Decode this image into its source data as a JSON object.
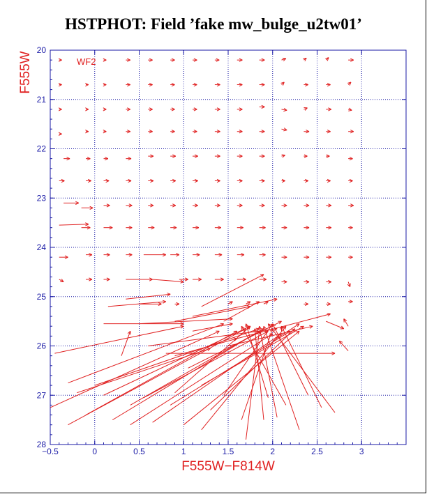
{
  "title": "HSTPHOT: Field ’fake mw_bulge_u2tw01’",
  "chart_data": {
    "type": "scatter",
    "subtype": "vector field (arrows from input to measured magnitude)",
    "xlabel": "F555W−F814W",
    "ylabel": "F555W",
    "panel_label": "WF2",
    "xlim": [
      -0.5,
      3.5
    ],
    "ylim": [
      20,
      28
    ],
    "y_inverted": true,
    "x_ticks": [
      "−0.5",
      "0",
      "0.5",
      "1",
      "1.5",
      "2",
      "2.5",
      "3"
    ],
    "x_tick_values": [
      -0.5,
      0,
      0.5,
      1,
      1.5,
      2,
      2.5,
      3
    ],
    "y_ticks": [
      "20",
      "21",
      "22",
      "23",
      "24",
      "25",
      "26",
      "27",
      "28"
    ],
    "y_tick_values": [
      20,
      21,
      22,
      23,
      24,
      25,
      26,
      27,
      28
    ],
    "grid": true,
    "grid_style": "dotted",
    "colors": {
      "arrows": "#e02020",
      "axes": "#1a1aa6",
      "axis_labels": "#e02020",
      "title": "#000000"
    },
    "grid_arrows": [
      {
        "x": -0.4,
        "y": 20.2,
        "dx": 0.03,
        "dy": 0.0
      },
      {
        "x": 0.1,
        "y": 20.2,
        "dx": 0.03,
        "dy": 0.0
      },
      {
        "x": 0.35,
        "y": 20.2,
        "dx": 0.05,
        "dy": 0.0
      },
      {
        "x": 0.6,
        "y": 20.2,
        "dx": 0.05,
        "dy": 0.0
      },
      {
        "x": 0.85,
        "y": 20.2,
        "dx": 0.05,
        "dy": 0.0
      },
      {
        "x": 1.1,
        "y": 20.2,
        "dx": 0.05,
        "dy": 0.0
      },
      {
        "x": 1.35,
        "y": 20.2,
        "dx": 0.05,
        "dy": 0.0
      },
      {
        "x": 1.6,
        "y": 20.2,
        "dx": 0.06,
        "dy": 0.0
      },
      {
        "x": 1.85,
        "y": 20.2,
        "dx": 0.06,
        "dy": 0.0
      },
      {
        "x": 2.1,
        "y": 20.2,
        "dx": 0.05,
        "dy": -0.03
      },
      {
        "x": 2.35,
        "y": 20.2,
        "dx": 0.03,
        "dy": -0.04
      },
      {
        "x": 2.6,
        "y": 20.2,
        "dx": 0.03,
        "dy": -0.05
      },
      {
        "x": 2.85,
        "y": 20.2,
        "dx": 0.06,
        "dy": 0.0
      },
      {
        "x": -0.4,
        "y": 20.7,
        "dx": 0.03,
        "dy": 0.0
      },
      {
        "x": -0.1,
        "y": 20.7,
        "dx": 0.03,
        "dy": 0.0
      },
      {
        "x": 0.1,
        "y": 20.7,
        "dx": 0.03,
        "dy": 0.0
      },
      {
        "x": 0.35,
        "y": 20.7,
        "dx": 0.05,
        "dy": 0.0
      },
      {
        "x": 0.6,
        "y": 20.7,
        "dx": 0.05,
        "dy": 0.0
      },
      {
        "x": 0.85,
        "y": 20.7,
        "dx": 0.05,
        "dy": 0.0
      },
      {
        "x": 1.1,
        "y": 20.7,
        "dx": 0.05,
        "dy": 0.0
      },
      {
        "x": 1.35,
        "y": 20.7,
        "dx": 0.06,
        "dy": 0.0
      },
      {
        "x": 1.6,
        "y": 20.7,
        "dx": 0.06,
        "dy": 0.0
      },
      {
        "x": 1.85,
        "y": 20.7,
        "dx": 0.06,
        "dy": 0.0
      },
      {
        "x": 2.1,
        "y": 20.7,
        "dx": 0.03,
        "dy": -0.05
      },
      {
        "x": 2.35,
        "y": 20.7,
        "dx": 0.05,
        "dy": 0.0
      },
      {
        "x": 2.6,
        "y": 20.7,
        "dx": 0.05,
        "dy": 0.0
      },
      {
        "x": 2.85,
        "y": 20.7,
        "dx": 0.03,
        "dy": -0.05
      },
      {
        "x": -0.4,
        "y": 21.2,
        "dx": 0.03,
        "dy": 0.0
      },
      {
        "x": -0.1,
        "y": 21.2,
        "dx": 0.03,
        "dy": 0.0
      },
      {
        "x": 0.1,
        "y": 21.2,
        "dx": 0.03,
        "dy": 0.0
      },
      {
        "x": 0.35,
        "y": 21.2,
        "dx": 0.05,
        "dy": 0.0
      },
      {
        "x": 0.6,
        "y": 21.2,
        "dx": 0.05,
        "dy": 0.0
      },
      {
        "x": 0.85,
        "y": 21.2,
        "dx": 0.05,
        "dy": 0.0
      },
      {
        "x": 1.1,
        "y": 21.2,
        "dx": 0.05,
        "dy": 0.0
      },
      {
        "x": 1.35,
        "y": 21.2,
        "dx": 0.06,
        "dy": 0.0
      },
      {
        "x": 1.6,
        "y": 21.2,
        "dx": 0.06,
        "dy": 0.0
      },
      {
        "x": 1.85,
        "y": 21.15,
        "dx": 0.06,
        "dy": 0.0
      },
      {
        "x": 2.1,
        "y": 21.2,
        "dx": 0.06,
        "dy": 0.02
      },
      {
        "x": 2.35,
        "y": 21.2,
        "dx": 0.04,
        "dy": -0.03
      },
      {
        "x": 2.6,
        "y": 21.2,
        "dx": 0.06,
        "dy": 0.0
      },
      {
        "x": 2.85,
        "y": 21.2,
        "dx": 0.04,
        "dy": 0.02
      },
      {
        "x": -0.4,
        "y": 21.7,
        "dx": 0.03,
        "dy": 0.0
      },
      {
        "x": -0.1,
        "y": 21.65,
        "dx": 0.03,
        "dy": 0.0
      },
      {
        "x": 0.1,
        "y": 21.65,
        "dx": 0.03,
        "dy": 0.0
      },
      {
        "x": 0.35,
        "y": 21.65,
        "dx": 0.05,
        "dy": 0.0
      },
      {
        "x": 0.6,
        "y": 21.65,
        "dx": 0.05,
        "dy": 0.0
      },
      {
        "x": 0.85,
        "y": 21.65,
        "dx": 0.05,
        "dy": 0.0
      },
      {
        "x": 1.1,
        "y": 21.65,
        "dx": 0.05,
        "dy": 0.0
      },
      {
        "x": 1.35,
        "y": 21.65,
        "dx": 0.06,
        "dy": 0.0
      },
      {
        "x": 1.6,
        "y": 21.65,
        "dx": 0.06,
        "dy": 0.0
      },
      {
        "x": 1.85,
        "y": 21.65,
        "dx": 0.06,
        "dy": 0.0
      },
      {
        "x": 2.1,
        "y": 21.6,
        "dx": 0.06,
        "dy": 0.02
      },
      {
        "x": 2.35,
        "y": 21.65,
        "dx": 0.06,
        "dy": 0.0
      },
      {
        "x": 2.6,
        "y": 21.65,
        "dx": 0.05,
        "dy": 0.0
      },
      {
        "x": 2.85,
        "y": 21.65,
        "dx": 0.06,
        "dy": 0.0
      },
      {
        "x": -0.35,
        "y": 22.2,
        "dx": 0.07,
        "dy": 0.0
      },
      {
        "x": -0.1,
        "y": 22.2,
        "dx": 0.05,
        "dy": 0.0
      },
      {
        "x": 0.1,
        "y": 22.2,
        "dx": 0.05,
        "dy": 0.0
      },
      {
        "x": 0.35,
        "y": 22.2,
        "dx": 0.06,
        "dy": 0.0
      },
      {
        "x": 0.6,
        "y": 22.15,
        "dx": 0.06,
        "dy": 0.0
      },
      {
        "x": 0.85,
        "y": 22.15,
        "dx": 0.06,
        "dy": 0.0
      },
      {
        "x": 1.1,
        "y": 22.15,
        "dx": 0.06,
        "dy": 0.0
      },
      {
        "x": 1.35,
        "y": 22.15,
        "dx": 0.06,
        "dy": 0.0
      },
      {
        "x": 1.6,
        "y": 22.15,
        "dx": 0.06,
        "dy": 0.0
      },
      {
        "x": 1.85,
        "y": 22.15,
        "dx": 0.06,
        "dy": 0.0
      },
      {
        "x": 2.1,
        "y": 22.15,
        "dx": 0.04,
        "dy": -0.02
      },
      {
        "x": 2.35,
        "y": 22.15,
        "dx": 0.04,
        "dy": 0.0
      },
      {
        "x": 2.6,
        "y": 22.15,
        "dx": 0.04,
        "dy": 0.0
      },
      {
        "x": 2.85,
        "y": 22.2,
        "dx": 0.05,
        "dy": 0.0
      },
      {
        "x": -0.4,
        "y": 22.65,
        "dx": 0.06,
        "dy": 0.0
      },
      {
        "x": -0.1,
        "y": 22.65,
        "dx": 0.06,
        "dy": 0.0
      },
      {
        "x": 0.1,
        "y": 22.65,
        "dx": 0.06,
        "dy": 0.0
      },
      {
        "x": 0.35,
        "y": 22.65,
        "dx": 0.06,
        "dy": 0.0
      },
      {
        "x": 0.6,
        "y": 22.65,
        "dx": 0.06,
        "dy": 0.0
      },
      {
        "x": 0.85,
        "y": 22.65,
        "dx": 0.06,
        "dy": 0.0
      },
      {
        "x": 1.1,
        "y": 22.65,
        "dx": 0.06,
        "dy": 0.0
      },
      {
        "x": 1.35,
        "y": 22.65,
        "dx": 0.06,
        "dy": 0.0
      },
      {
        "x": 1.6,
        "y": 22.65,
        "dx": 0.06,
        "dy": 0.0
      },
      {
        "x": 1.85,
        "y": 22.65,
        "dx": 0.06,
        "dy": 0.0
      },
      {
        "x": 2.1,
        "y": 22.65,
        "dx": 0.04,
        "dy": 0.0
      },
      {
        "x": 2.35,
        "y": 22.65,
        "dx": 0.05,
        "dy": 0.0
      },
      {
        "x": 2.6,
        "y": 22.65,
        "dx": 0.05,
        "dy": 0.0
      },
      {
        "x": 2.85,
        "y": 22.65,
        "dx": 0.05,
        "dy": 0.0
      },
      {
        "x": -0.35,
        "y": 23.1,
        "dx": 0.17,
        "dy": 0.0
      },
      {
        "x": -0.15,
        "y": 23.2,
        "dx": 0.13,
        "dy": 0.0
      },
      {
        "x": 0.1,
        "y": 23.15,
        "dx": 0.07,
        "dy": 0.0
      },
      {
        "x": 0.35,
        "y": 23.15,
        "dx": 0.07,
        "dy": 0.0
      },
      {
        "x": 0.6,
        "y": 23.15,
        "dx": 0.06,
        "dy": 0.0
      },
      {
        "x": 0.85,
        "y": 23.15,
        "dx": 0.06,
        "dy": 0.0
      },
      {
        "x": 1.1,
        "y": 23.15,
        "dx": 0.06,
        "dy": 0.0
      },
      {
        "x": 1.35,
        "y": 23.15,
        "dx": 0.06,
        "dy": 0.0
      },
      {
        "x": 1.6,
        "y": 23.15,
        "dx": 0.06,
        "dy": 0.0
      },
      {
        "x": 1.85,
        "y": 23.15,
        "dx": 0.06,
        "dy": 0.0
      },
      {
        "x": 2.1,
        "y": 23.15,
        "dx": 0.06,
        "dy": 0.0
      },
      {
        "x": 2.35,
        "y": 23.15,
        "dx": 0.06,
        "dy": 0.0
      },
      {
        "x": 2.6,
        "y": 23.15,
        "dx": 0.06,
        "dy": 0.0
      },
      {
        "x": 2.85,
        "y": 23.15,
        "dx": 0.06,
        "dy": 0.0
      },
      {
        "x": -0.4,
        "y": 23.55,
        "dx": 0.33,
        "dy": -0.02
      },
      {
        "x": -0.15,
        "y": 23.6,
        "dx": 0.1,
        "dy": 0.0
      },
      {
        "x": 0.1,
        "y": 23.6,
        "dx": 0.1,
        "dy": 0.0
      },
      {
        "x": 0.35,
        "y": 23.6,
        "dx": 0.07,
        "dy": 0.0
      },
      {
        "x": 0.6,
        "y": 23.6,
        "dx": 0.07,
        "dy": 0.0
      },
      {
        "x": 0.85,
        "y": 23.6,
        "dx": 0.07,
        "dy": 0.0
      },
      {
        "x": 1.1,
        "y": 23.6,
        "dx": 0.07,
        "dy": 0.0
      },
      {
        "x": 1.35,
        "y": 23.6,
        "dx": 0.07,
        "dy": 0.0
      },
      {
        "x": 1.6,
        "y": 23.6,
        "dx": 0.07,
        "dy": 0.0
      },
      {
        "x": 1.85,
        "y": 23.6,
        "dx": 0.07,
        "dy": 0.0
      },
      {
        "x": 2.1,
        "y": 23.6,
        "dx": 0.06,
        "dy": 0.0
      },
      {
        "x": 2.35,
        "y": 23.6,
        "dx": 0.06,
        "dy": 0.0
      },
      {
        "x": 2.6,
        "y": 23.6,
        "dx": 0.06,
        "dy": 0.0
      },
      {
        "x": 2.85,
        "y": 23.6,
        "dx": 0.05,
        "dy": 0.0
      },
      {
        "x": -0.4,
        "y": 24.2,
        "dx": 0.1,
        "dy": 0.0
      },
      {
        "x": -0.1,
        "y": 24.15,
        "dx": 0.07,
        "dy": 0.0
      },
      {
        "x": 0.1,
        "y": 24.15,
        "dx": 0.07,
        "dy": 0.0
      },
      {
        "x": 0.35,
        "y": 24.15,
        "dx": 0.07,
        "dy": 0.0
      },
      {
        "x": 0.55,
        "y": 24.15,
        "dx": 0.25,
        "dy": 0.0
      },
      {
        "x": 0.85,
        "y": 24.15,
        "dx": 0.1,
        "dy": 0.0
      },
      {
        "x": 1.1,
        "y": 24.15,
        "dx": 0.08,
        "dy": 0.0
      },
      {
        "x": 1.35,
        "y": 24.15,
        "dx": 0.08,
        "dy": 0.0
      },
      {
        "x": 1.6,
        "y": 24.15,
        "dx": 0.08,
        "dy": 0.0
      },
      {
        "x": 1.85,
        "y": 24.15,
        "dx": 0.07,
        "dy": 0.0
      },
      {
        "x": 2.1,
        "y": 24.2,
        "dx": 0.06,
        "dy": 0.0
      },
      {
        "x": 2.35,
        "y": 24.2,
        "dx": 0.06,
        "dy": 0.0
      },
      {
        "x": 2.6,
        "y": 24.2,
        "dx": 0.06,
        "dy": 0.0
      },
      {
        "x": 2.85,
        "y": 24.2,
        "dx": 0.05,
        "dy": 0.0
      },
      {
        "x": -0.4,
        "y": 24.65,
        "dx": 0.05,
        "dy": 0.05
      },
      {
        "x": -0.1,
        "y": 24.65,
        "dx": 0.07,
        "dy": 0.0
      },
      {
        "x": 0.1,
        "y": 24.65,
        "dx": 0.07,
        "dy": 0.0
      },
      {
        "x": 0.35,
        "y": 24.65,
        "dx": 0.3,
        "dy": 0.0
      },
      {
        "x": 0.65,
        "y": 24.65,
        "dx": 0.35,
        "dy": 0.05
      },
      {
        "x": 0.95,
        "y": 24.65,
        "dx": 0.1,
        "dy": 0.0
      },
      {
        "x": 1.1,
        "y": 24.65,
        "dx": 0.1,
        "dy": 0.0
      },
      {
        "x": 1.35,
        "y": 24.65,
        "dx": 0.1,
        "dy": 0.0
      },
      {
        "x": 1.6,
        "y": 24.65,
        "dx": 0.1,
        "dy": 0.0
      },
      {
        "x": 1.85,
        "y": 24.65,
        "dx": 0.08,
        "dy": 0.0
      },
      {
        "x": 2.1,
        "y": 24.7,
        "dx": 0.06,
        "dy": 0.0
      },
      {
        "x": 2.35,
        "y": 24.7,
        "dx": 0.06,
        "dy": 0.0
      },
      {
        "x": 2.6,
        "y": 24.7,
        "dx": 0.06,
        "dy": 0.0
      },
      {
        "x": 2.85,
        "y": 24.7,
        "dx": 0.02,
        "dy": 0.1
      }
    ],
    "faint_arrows": [
      {
        "x0": -0.45,
        "y0": 26.15,
        "x1": 1.0,
        "y1": 25.6
      },
      {
        "x0": -0.3,
        "y0": 26.75,
        "x1": 1.45,
        "y1": 25.55
      },
      {
        "x0": -0.5,
        "y0": 27.25,
        "x1": 1.4,
        "y1": 25.7
      },
      {
        "x0": -0.3,
        "y0": 27.6,
        "x1": 1.7,
        "y1": 25.65
      },
      {
        "x0": -0.1,
        "y0": 27.4,
        "x1": 1.6,
        "y1": 25.7
      },
      {
        "x0": 0.1,
        "y0": 27.0,
        "x1": 1.75,
        "y1": 25.6
      },
      {
        "x0": 0.2,
        "y0": 27.5,
        "x1": 1.85,
        "y1": 25.7
      },
      {
        "x0": 0.4,
        "y0": 27.2,
        "x1": 1.9,
        "y1": 25.65
      },
      {
        "x0": 0.55,
        "y0": 27.05,
        "x1": 1.95,
        "y1": 25.7
      },
      {
        "x0": 0.4,
        "y0": 27.6,
        "x1": 2.0,
        "y1": 25.75
      },
      {
        "x0": 0.65,
        "y0": 27.55,
        "x1": 2.1,
        "y1": 25.75
      },
      {
        "x0": 0.85,
        "y0": 27.2,
        "x1": 2.2,
        "y1": 25.7
      },
      {
        "x0": 0.9,
        "y0": 26.95,
        "x1": 1.75,
        "y1": 25.6
      },
      {
        "x0": 1.0,
        "y0": 27.6,
        "x1": 2.3,
        "y1": 25.7
      },
      {
        "x0": 1.05,
        "y0": 26.45,
        "x1": 2.1,
        "y1": 25.5
      },
      {
        "x0": 1.2,
        "y0": 27.7,
        "x1": 2.15,
        "y1": 25.6
      },
      {
        "x0": 1.3,
        "y0": 27.3,
        "x1": 2.25,
        "y1": 25.65
      },
      {
        "x0": 1.45,
        "y0": 27.0,
        "x1": 2.0,
        "y1": 25.55
      },
      {
        "x0": 1.65,
        "y0": 27.5,
        "x1": 2.0,
        "y1": 25.65
      },
      {
        "x0": 1.7,
        "y0": 27.9,
        "x1": 1.85,
        "y1": 25.7
      },
      {
        "x0": 1.9,
        "y0": 27.5,
        "x1": 1.8,
        "y1": 25.65
      },
      {
        "x0": 1.95,
        "y0": 27.05,
        "x1": 1.7,
        "y1": 25.55
      },
      {
        "x0": 2.05,
        "y0": 27.45,
        "x1": 1.85,
        "y1": 25.6
      },
      {
        "x0": 2.15,
        "y0": 27.2,
        "x1": 1.65,
        "y1": 25.6
      },
      {
        "x0": 2.3,
        "y0": 27.7,
        "x1": 1.9,
        "y1": 25.6
      },
      {
        "x0": 2.4,
        "y0": 27.0,
        "x1": 2.0,
        "y1": 25.55
      },
      {
        "x0": 2.55,
        "y0": 27.25,
        "x1": 2.1,
        "y1": 25.6
      },
      {
        "x0": 2.7,
        "y0": 27.35,
        "x1": 1.95,
        "y1": 25.55
      },
      {
        "x0": 2.85,
        "y0": 26.1,
        "x1": 2.75,
        "y1": 25.9
      },
      {
        "x0": 0.3,
        "y0": 26.2,
        "x1": 0.4,
        "y1": 25.7
      },
      {
        "x0": 0.0,
        "y0": 26.8,
        "x1": 1.85,
        "y1": 25.65
      },
      {
        "x0": -0.2,
        "y0": 26.95,
        "x1": 1.3,
        "y1": 26.05
      },
      {
        "x0": 0.6,
        "y0": 26.0,
        "x1": 2.05,
        "y1": 25.65
      },
      {
        "x0": 1.2,
        "y0": 26.8,
        "x1": 2.35,
        "y1": 25.6
      },
      {
        "x0": 0.8,
        "y0": 26.15,
        "x1": 2.7,
        "y1": 26.15
      },
      {
        "x0": 1.5,
        "y0": 26.0,
        "x1": 2.45,
        "y1": 25.6
      },
      {
        "x0": 1.6,
        "y0": 25.85,
        "x1": 2.65,
        "y1": 25.35
      },
      {
        "x0": 0.5,
        "y0": 25.55,
        "x1": 1.55,
        "y1": 25.45
      },
      {
        "x0": 0.9,
        "y0": 25.5,
        "x1": 1.75,
        "y1": 25.2
      },
      {
        "x0": 1.1,
        "y0": 25.7,
        "x1": 1.55,
        "y1": 25.55
      },
      {
        "x0": 1.1,
        "y0": 25.4,
        "x1": 2.05,
        "y1": 25.05
      },
      {
        "x0": 1.45,
        "y0": 25.5,
        "x1": 1.85,
        "y1": 25.1
      },
      {
        "x0": 1.2,
        "y0": 25.2,
        "x1": 1.9,
        "y1": 24.55
      },
      {
        "x0": 0.1,
        "y0": 25.55,
        "x1": 1.0,
        "y1": 25.55
      },
      {
        "x0": 0.9,
        "y0": 26.2,
        "x1": 1.6,
        "y1": 25.85
      },
      {
        "x0": 2.0,
        "y0": 25.9,
        "x1": 2.3,
        "y1": 25.55
      },
      {
        "x0": 2.6,
        "y0": 25.5,
        "x1": 2.8,
        "y1": 25.65
      },
      {
        "x0": 0.15,
        "y0": 25.2,
        "x1": 0.8,
        "y1": 25.1
      },
      {
        "x0": 0.35,
        "y0": 25.05,
        "x1": 0.85,
        "y1": 24.95
      },
      {
        "x0": 0.5,
        "y0": 25.15,
        "x1": 0.75,
        "y1": 25.15
      },
      {
        "x0": 0.9,
        "y0": 25.15,
        "x1": 0.95,
        "y1": 25.15
      },
      {
        "x0": 1.5,
        "y0": 25.15,
        "x1": 1.55,
        "y1": 25.1
      },
      {
        "x0": 1.7,
        "y0": 25.15,
        "x1": 1.75,
        "y1": 25.1
      },
      {
        "x0": 1.9,
        "y0": 25.15,
        "x1": 1.95,
        "y1": 25.1
      },
      {
        "x0": 2.35,
        "y0": 25.15,
        "x1": 2.4,
        "y1": 25.15
      },
      {
        "x0": 2.6,
        "y0": 25.15,
        "x1": 2.65,
        "y1": 25.15
      },
      {
        "x0": 2.85,
        "y0": 25.1,
        "x1": 2.9,
        "y1": 25.1
      },
      {
        "x0": 2.85,
        "y0": 25.6,
        "x1": 2.8,
        "y1": 25.45
      },
      {
        "x0": 2.1,
        "y0": 25.7,
        "x1": 2.1,
        "y1": 25.6
      }
    ]
  }
}
